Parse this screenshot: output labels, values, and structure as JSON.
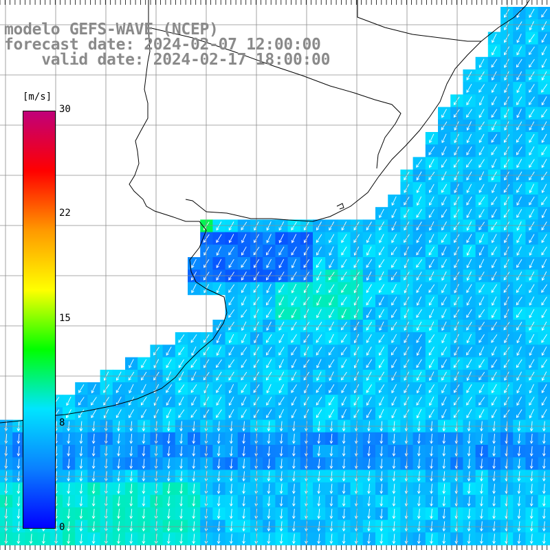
{
  "titles": {
    "line1": "modelo GEFS-WAVE (NCEP)",
    "line2": "forecast date: 2024-02-07 12:00:00",
    "line3": "    valid date: 2024-02-17 18:00:00"
  },
  "colorbar": {
    "unit": "[m/s]",
    "min": 0,
    "max": 30,
    "ticks": [
      "30",
      "22",
      "15",
      "8",
      "0"
    ],
    "tick_values": [
      30,
      22,
      15,
      8,
      0
    ],
    "colors": [
      "#0000ff",
      "#0a80ff",
      "#00e5ff",
      "#00ff00",
      "#ffff00",
      "#ff9900",
      "#ff0000",
      "#c0007a"
    ]
  },
  "map": {
    "ocean_speed_base_ms": 6,
    "arrow_color": "#ffffff",
    "coast_color": "#000000",
    "grid_color": "#8c8c8c"
  }
}
